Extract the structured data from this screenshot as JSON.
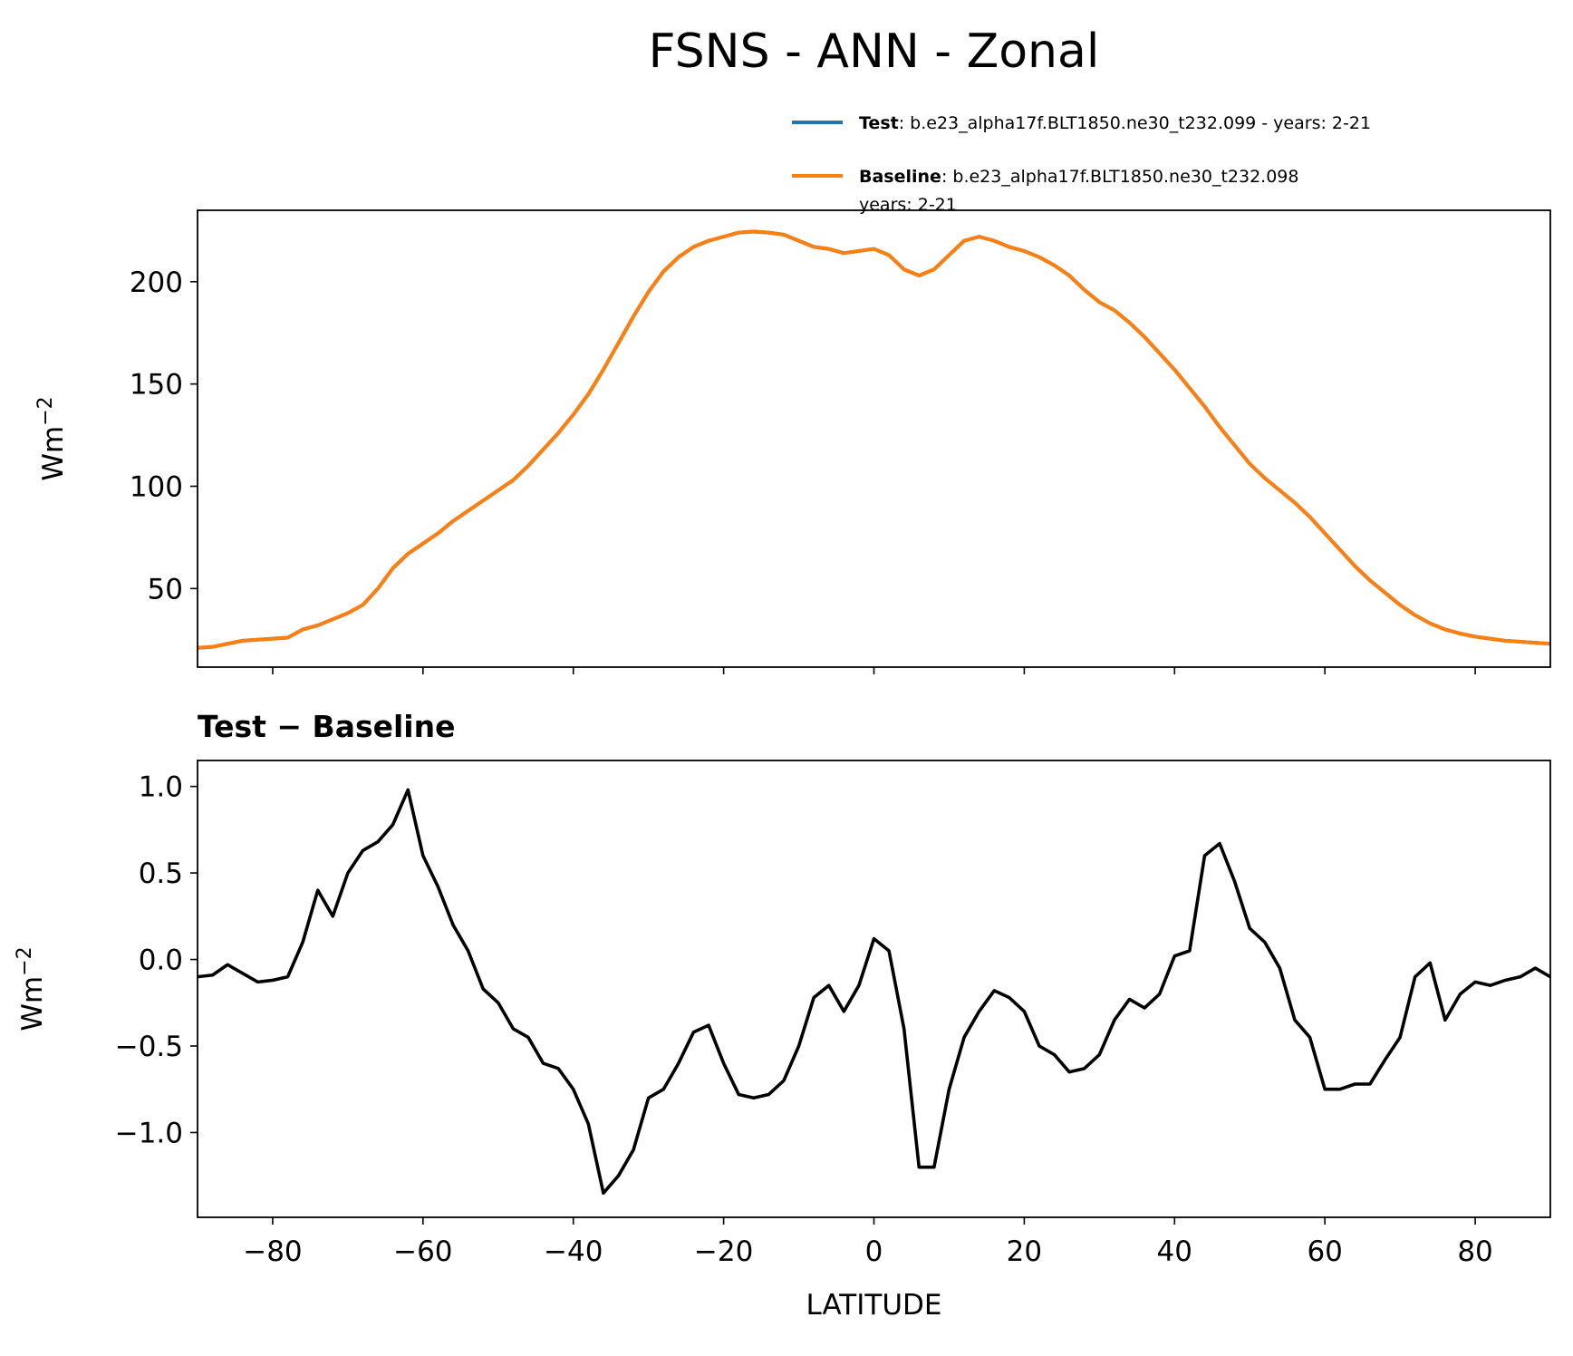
{
  "chart_data": [
    {
      "type": "line",
      "title": "FSNS - ANN - Zonal",
      "ylabel": {
        "base": "Wm",
        "sup": "−2"
      },
      "x": [
        -90,
        -88,
        -86,
        -84,
        -82,
        -80,
        -78,
        -76,
        -74,
        -72,
        -70,
        -68,
        -66,
        -64,
        -62,
        -60,
        -58,
        -56,
        -54,
        -52,
        -50,
        -48,
        -46,
        -44,
        -42,
        -40,
        -38,
        -36,
        -34,
        -32,
        -30,
        -28,
        -26,
        -24,
        -22,
        -20,
        -18,
        -16,
        -14,
        -12,
        -10,
        -8,
        -6,
        -4,
        -2,
        0,
        2,
        4,
        6,
        8,
        10,
        12,
        14,
        16,
        18,
        20,
        22,
        24,
        26,
        28,
        30,
        32,
        34,
        36,
        38,
        40,
        42,
        44,
        46,
        48,
        50,
        52,
        54,
        56,
        58,
        60,
        62,
        64,
        66,
        68,
        70,
        72,
        74,
        76,
        78,
        80,
        82,
        84,
        86,
        88,
        90
      ],
      "series": [
        {
          "name": "Test",
          "color": "#1f77b4",
          "label_lines": [
            ": b.e23_alpha17f.BLT1850.ne30_t232.099 - years: 2-21"
          ],
          "values": [
            21,
            21.5,
            23,
            24.5,
            25,
            25.5,
            26,
            30,
            32,
            35,
            38,
            42,
            50,
            60,
            67,
            72,
            77,
            83,
            88,
            93,
            98,
            103,
            110,
            118,
            126,
            135,
            145,
            157,
            170,
            183,
            195,
            205,
            212,
            217,
            220,
            222,
            224,
            224.5,
            224,
            223,
            220,
            217,
            216,
            214,
            215,
            216,
            213,
            206,
            203,
            206,
            213,
            220,
            222,
            220,
            217,
            215,
            212,
            208,
            203,
            196,
            190,
            186,
            180,
            173,
            165,
            157,
            148,
            139,
            129,
            120,
            111,
            104,
            98,
            92,
            85,
            77,
            69,
            61,
            54,
            48,
            42,
            37,
            33,
            30,
            28,
            26.5,
            25.5,
            24.5,
            24,
            23.5,
            23
          ]
        },
        {
          "name": "Baseline",
          "color": "#ff7f0e",
          "label_lines": [
            ": b.e23_alpha17f.BLT1850.ne30_t232.098",
            "years: 2-21"
          ],
          "values": [
            21,
            21.5,
            23,
            24.5,
            25,
            25.5,
            26,
            30,
            32,
            35,
            38,
            42,
            50,
            60,
            67,
            72,
            77,
            83,
            88,
            93,
            98,
            103,
            110,
            118,
            126,
            135,
            145,
            157,
            170,
            183,
            195,
            205,
            212,
            217,
            220,
            222,
            224,
            224.5,
            224,
            223,
            220,
            217,
            216,
            214,
            215,
            216,
            213,
            206,
            203,
            206,
            213,
            220,
            222,
            220,
            217,
            215,
            212,
            208,
            203,
            196,
            190,
            186,
            180,
            173,
            165,
            157,
            148,
            139,
            129,
            120,
            111,
            104,
            98,
            92,
            85,
            77,
            69,
            61,
            54,
            48,
            42,
            37,
            33,
            30,
            28,
            26.5,
            25.5,
            24.5,
            24,
            23.5,
            23
          ]
        }
      ],
      "xlim": [
        -90,
        90
      ],
      "xticks": [
        -80,
        -60,
        -40,
        -20,
        0,
        20,
        40,
        60,
        80
      ],
      "show_xtick_labels": false,
      "ylim": [
        11.6,
        234.9
      ],
      "yticks": [
        50,
        100,
        150,
        200
      ]
    },
    {
      "type": "line",
      "title": "Test − Baseline",
      "xlabel": "LATITUDE",
      "ylabel": {
        "base": "Wm",
        "sup": "−2"
      },
      "x": [
        -90,
        -88,
        -86,
        -84,
        -82,
        -80,
        -78,
        -76,
        -74,
        -72,
        -70,
        -68,
        -66,
        -64,
        -62,
        -60,
        -58,
        -56,
        -54,
        -52,
        -50,
        -48,
        -46,
        -44,
        -42,
        -40,
        -38,
        -36,
        -34,
        -32,
        -30,
        -28,
        -26,
        -24,
        -22,
        -20,
        -18,
        -16,
        -14,
        -12,
        -10,
        -8,
        -6,
        -4,
        -2,
        0,
        2,
        4,
        6,
        8,
        10,
        12,
        14,
        16,
        18,
        20,
        22,
        24,
        26,
        28,
        30,
        32,
        34,
        36,
        38,
        40,
        42,
        44,
        46,
        48,
        50,
        52,
        54,
        56,
        58,
        60,
        62,
        64,
        66,
        68,
        70,
        72,
        74,
        76,
        78,
        80,
        82,
        84,
        86,
        88,
        90
      ],
      "series": [
        {
          "color": "#000000",
          "values": [
            -0.1,
            -0.09,
            -0.03,
            -0.08,
            -0.13,
            -0.12,
            -0.1,
            0.1,
            0.4,
            0.25,
            0.5,
            0.63,
            0.68,
            0.78,
            0.98,
            0.6,
            0.42,
            0.2,
            0.05,
            -0.17,
            -0.25,
            -0.4,
            -0.45,
            -0.6,
            -0.63,
            -0.75,
            -0.95,
            -1.35,
            -1.25,
            -1.1,
            -0.8,
            -0.75,
            -0.6,
            -0.42,
            -0.38,
            -0.6,
            -0.78,
            -0.8,
            -0.78,
            -0.7,
            -0.5,
            -0.22,
            -0.15,
            -0.3,
            -0.15,
            0.12,
            0.05,
            -0.4,
            -1.2,
            -1.2,
            -0.75,
            -0.45,
            -0.3,
            -0.18,
            -0.22,
            -0.3,
            -0.5,
            -0.55,
            -0.65,
            -0.63,
            -0.55,
            -0.35,
            -0.23,
            -0.28,
            -0.2,
            0.02,
            0.05,
            0.6,
            0.67,
            0.45,
            0.18,
            0.1,
            -0.05,
            -0.35,
            -0.45,
            -0.75,
            -0.75,
            -0.72,
            -0.72,
            -0.58,
            -0.45,
            -0.1,
            -0.02,
            -0.35,
            -0.2,
            -0.13,
            -0.15,
            -0.12,
            -0.1,
            -0.05,
            -0.1
          ]
        }
      ],
      "xlim": [
        -90,
        90
      ],
      "xticks": [
        {
          "value": -80,
          "label": "−80"
        },
        {
          "value": -60,
          "label": "−60"
        },
        {
          "value": -40,
          "label": "−40"
        },
        {
          "value": -20,
          "label": "−20"
        },
        0,
        20,
        40,
        60,
        80
      ],
      "show_xtick_labels": true,
      "ylim": [
        -1.49,
        1.15
      ],
      "yticks": [
        {
          "value": -1.0,
          "label": "−1.0"
        },
        {
          "value": -0.5,
          "label": "−0.5"
        },
        {
          "value": 0,
          "label": "0.0"
        },
        {
          "value": 0.5,
          "label": "0.5"
        },
        {
          "value": 1.0,
          "label": "1.0"
        }
      ]
    }
  ]
}
